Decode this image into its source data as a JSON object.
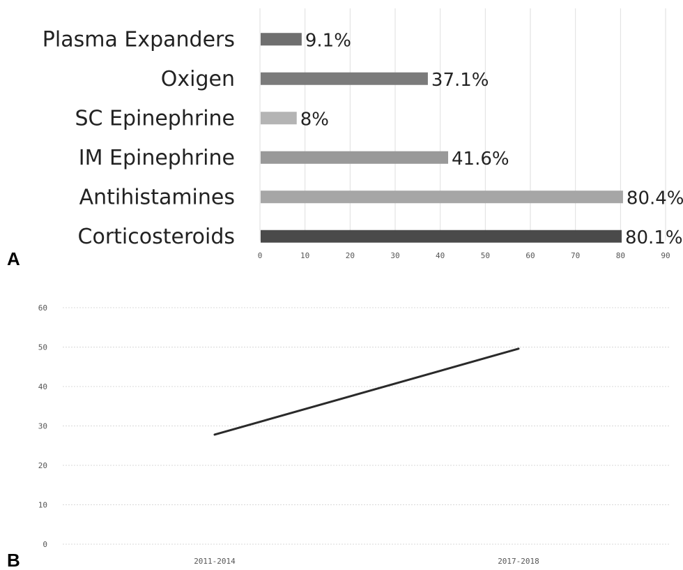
{
  "panels": {
    "a_label": "A",
    "b_label": "B"
  },
  "chart_data": [
    {
      "type": "bar",
      "orientation": "horizontal",
      "categories": [
        "Plasma Expanders",
        "Oxigen",
        "SC Epinephrine",
        "IM Epinephrine",
        "Antihistamines",
        "Corticosteroids"
      ],
      "values": [
        9.1,
        37.1,
        8,
        41.6,
        80.4,
        80.1
      ],
      "value_labels": [
        "9.1%",
        "37.1%",
        "8%",
        "41.6%",
        "80.4%",
        "80.1%"
      ],
      "bar_colors": [
        "#6f6f6f",
        "#7b7b7b",
        "#b4b4b4",
        "#999999",
        "#a6a6a6",
        "#4a4a4a"
      ],
      "xlim": [
        0,
        90
      ],
      "xticks": [
        0,
        10,
        20,
        30,
        40,
        50,
        60,
        70,
        80,
        90
      ],
      "grid": true
    },
    {
      "type": "line",
      "categories": [
        "2011-2014",
        "2017-2018"
      ],
      "series": [
        {
          "values": [
            27.8,
            49.6
          ],
          "color": "#2a2a2a"
        }
      ],
      "ylim": [
        0,
        60
      ],
      "yticks": [
        0,
        10,
        20,
        30,
        40,
        50,
        60
      ],
      "grid": true
    }
  ]
}
